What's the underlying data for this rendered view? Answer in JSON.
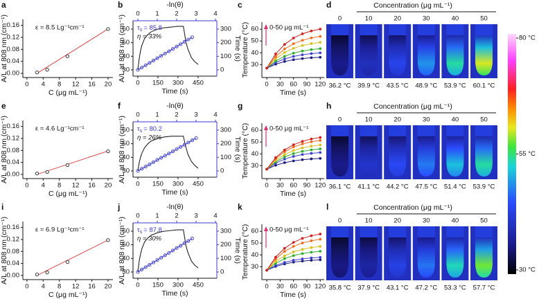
{
  "chart_data": [
    {
      "panel": "a",
      "type": "calibration",
      "annotation": "ε = 8.5 Lg⁻¹cm⁻¹",
      "x_label": "C (μg mL⁻¹)",
      "y_label": "A/L at 808 nm (cm⁻¹)",
      "x": [
        2.5,
        5,
        10,
        20
      ],
      "values": [
        0.003,
        0.012,
        0.057,
        0.148
      ],
      "fit_x": [
        2.5,
        20
      ],
      "fit_values": [
        0.0,
        0.148
      ],
      "color": "#222222",
      "fit_color": "#e04848",
      "xlim": [
        -1,
        21.2
      ],
      "ylim": [
        -0.014,
        0.18
      ],
      "xticks": [
        0,
        4,
        8,
        12,
        16,
        20
      ],
      "yticks": [
        {
          "value": 0,
          "label": "0.00"
        },
        {
          "value": 0.04,
          "label": "0.04"
        },
        {
          "value": 0.08,
          "label": "0.08"
        },
        {
          "value": 0.12,
          "label": "0.12"
        },
        {
          "value": 0.16,
          "label": "0.16"
        }
      ]
    },
    {
      "panel": "b",
      "type": "dual",
      "x_label": "Time (s)",
      "y_label": "A/L at 808 nm (cm⁻¹)",
      "x2_label": "-ln(θ)",
      "y2_label": "Time (s)",
      "tau": "τ",
      "tau_sub": "s",
      "tau_value": "= 85.8",
      "eta": "η = 33%",
      "xlim": [
        -36,
        590
      ],
      "xticks": [
        0,
        150,
        300,
        450
      ],
      "x2lim": [
        -0.25,
        4.07
      ],
      "x2ticks": [
        0,
        1,
        2,
        3,
        4
      ],
      "ylim": [
        25.4,
        66.1
      ],
      "yticks": [
        30,
        40,
        50,
        60
      ],
      "y2lim": [
        -46,
        361
      ],
      "y2ticks": [
        0,
        100,
        200,
        300
      ],
      "axis2_color": "#3a3ad0",
      "series": [
        {
          "color": "#222222",
          "x": [
            0,
            10,
            20,
            30,
            50,
            75,
            100,
            150,
            200,
            250,
            300,
            340,
            350,
            360,
            375,
            400,
            425,
            450
          ],
          "values": [
            30,
            38,
            44,
            48,
            53,
            56,
            58,
            60,
            61,
            61.5,
            62,
            62,
            56,
            50,
            45,
            39,
            36,
            34
          ]
        },
        {
          "color": "#3a3ad0",
          "axis": "y2",
          "x": [
            0,
            0.2,
            0.4,
            0.6,
            0.8,
            1.0,
            1.2,
            1.4,
            1.6,
            1.8,
            2.0,
            2.2,
            2.4,
            2.6,
            2.8
          ],
          "values": [
            0,
            17,
            34,
            51,
            69,
            86,
            103,
            120,
            137,
            154,
            172,
            189,
            206,
            223,
            240
          ]
        }
      ]
    },
    {
      "panel": "c",
      "type": "line",
      "x_label": "Time (s)",
      "y_label": "Temperature (°C)",
      "annotation": "0-50 μg mL⁻¹",
      "arrow_color": "#e0306a",
      "x": [
        0,
        20,
        40,
        60,
        80,
        100,
        120
      ],
      "xlim": [
        -11,
        129
      ],
      "xticks": [
        0,
        30,
        60,
        90,
        120
      ],
      "ylim": [
        19,
        66
      ],
      "yticks": [
        30,
        40,
        50,
        60
      ],
      "series": [
        {
          "color": "#1c1c80",
          "values": [
            27,
            30.3,
            32.6,
            34.1,
            35.1,
            35.8,
            36.2
          ]
        },
        {
          "color": "#4040d0",
          "values": [
            27,
            31.7,
            34.8,
            36.9,
            38.3,
            39.3,
            39.9
          ]
        },
        {
          "color": "#30b030",
          "values": [
            27,
            33.0,
            37.0,
            39.7,
            41.5,
            42.7,
            43.5
          ]
        },
        {
          "color": "#d8c020",
          "values": [
            27,
            34.9,
            40.3,
            43.8,
            46.2,
            47.8,
            48.9
          ]
        },
        {
          "color": "#f07020",
          "values": [
            27,
            36.8,
            43.3,
            47.7,
            50.6,
            52.6,
            53.9
          ]
        },
        {
          "color": "#d02020",
          "values": [
            27,
            39.0,
            47.1,
            52.5,
            56.1,
            58.5,
            60.1
          ]
        }
      ]
    },
    {
      "panel": "d",
      "type": "thermal",
      "title": "Concentration (μg mL⁻¹)",
      "categories": [
        "0",
        "10",
        "20",
        "30",
        "40",
        "50"
      ],
      "values": [
        36.2,
        39.9,
        43.5,
        48.9,
        53.9,
        60.1
      ],
      "value_labels": [
        "36.2 °C",
        "39.9 °C",
        "43.5 °C",
        "48.9 °C",
        "53.9 °C",
        "60.1 °C"
      ]
    },
    {
      "panel": "e",
      "type": "calibration",
      "annotation": "ε = 4.6 Lg⁻¹cm⁻¹",
      "x_label": "C (μg mL⁻¹)",
      "y_label": "A/L at 808 nm (cm⁻¹)",
      "x": [
        2.5,
        5,
        10,
        20
      ],
      "values": [
        0.003,
        0.008,
        0.031,
        0.077
      ],
      "fit_x": [
        2.5,
        20
      ],
      "fit_values": [
        0.0,
        0.078
      ],
      "color": "#222222",
      "fit_color": "#e04848",
      "xlim": [
        -1,
        21.2
      ],
      "ylim": [
        -0.014,
        0.18
      ],
      "xticks": [
        0,
        4,
        8,
        12,
        16,
        20
      ],
      "yticks": [
        {
          "value": 0,
          "label": "0.00"
        },
        {
          "value": 0.04,
          "label": "0.04"
        },
        {
          "value": 0.08,
          "label": "0.08"
        },
        {
          "value": 0.12,
          "label": "0.12"
        },
        {
          "value": 0.16,
          "label": "0.16"
        }
      ]
    },
    {
      "panel": "f",
      "type": "dual",
      "x_label": "Time (s)",
      "y_label": "A/L at 808 nm (cm⁻¹)",
      "x2_label": "-ln(θ)",
      "y2_label": "Time (s)",
      "tau": "τ",
      "tau_sub": "s",
      "tau_value": "= 80.2",
      "eta": "η = 26%",
      "xlim": [
        -36,
        590
      ],
      "xticks": [
        0,
        150,
        300,
        450
      ],
      "x2lim": [
        -0.25,
        4.07
      ],
      "x2ticks": [
        0,
        1,
        2,
        3,
        4
      ],
      "ylim": [
        25.4,
        66.1
      ],
      "yticks": [
        30,
        40,
        50,
        60
      ],
      "y2lim": [
        -46,
        361
      ],
      "y2ticks": [
        0,
        100,
        200,
        300
      ],
      "axis2_color": "#3a3ad0",
      "series": [
        {
          "color": "#222222",
          "x": [
            0,
            10,
            20,
            30,
            50,
            75,
            100,
            150,
            200,
            250,
            300,
            340,
            350,
            360,
            375,
            400,
            425,
            450
          ],
          "values": [
            30,
            36,
            40,
            43,
            47,
            50,
            52,
            54,
            55,
            55.5,
            55.5,
            55.5,
            51,
            47,
            42,
            37,
            34,
            32
          ]
        },
        {
          "color": "#3a3ad0",
          "axis": "y2",
          "x": [
            0,
            0.2,
            0.4,
            0.6,
            0.8,
            1.0,
            1.2,
            1.4,
            1.6,
            1.8,
            2.0,
            2.2,
            2.4,
            2.6,
            2.8,
            3.0
          ],
          "values": [
            0,
            16,
            32,
            48,
            64,
            80,
            96,
            112,
            128,
            144,
            160,
            176,
            192,
            209,
            225,
            241
          ]
        }
      ]
    },
    {
      "panel": "g",
      "type": "line",
      "x_label": "Time (s)",
      "y_label": "Temperature (°C)",
      "annotation": "0-50 μg mL⁻¹",
      "arrow_color": "#e0306a",
      "x": [
        0,
        20,
        40,
        60,
        80,
        100,
        120
      ],
      "xlim": [
        -11,
        129
      ],
      "xticks": [
        0,
        30,
        60,
        90,
        120
      ],
      "ylim": [
        19,
        66
      ],
      "yticks": [
        30,
        40,
        50,
        60
      ],
      "series": [
        {
          "color": "#1c1c80",
          "values": [
            27,
            30.3,
            32.5,
            34.0,
            35.0,
            35.7,
            36.1
          ]
        },
        {
          "color": "#4040d0",
          "values": [
            27,
            32.1,
            35.5,
            37.8,
            39.4,
            40.4,
            41.1
          ]
        },
        {
          "color": "#30b030",
          "values": [
            27,
            33.2,
            37.4,
            40.2,
            42.1,
            43.4,
            44.2
          ]
        },
        {
          "color": "#d8c020",
          "values": [
            27,
            34.4,
            39.4,
            42.8,
            45.0,
            46.5,
            47.5
          ]
        },
        {
          "color": "#f07020",
          "values": [
            27,
            35.9,
            41.8,
            45.8,
            48.4,
            50.2,
            51.4
          ]
        },
        {
          "color": "#d02020",
          "values": [
            27,
            36.8,
            43.3,
            47.7,
            50.6,
            52.6,
            53.9
          ]
        }
      ]
    },
    {
      "panel": "h",
      "type": "thermal",
      "title": "Concentration (μg mL⁻¹)",
      "categories": [
        "0",
        "10",
        "20",
        "30",
        "40",
        "50"
      ],
      "values": [
        36.1,
        41.1,
        44.2,
        47.5,
        51.4,
        53.9
      ],
      "value_labels": [
        "36.1 °C",
        "41.1 °C",
        "44.2 °C",
        "47.5 °C",
        "51.4 °C",
        "53.9 °C"
      ]
    },
    {
      "panel": "i",
      "type": "calibration",
      "annotation": "ε = 6.9 Lg⁻¹cm⁻¹",
      "x_label": "C (μg mL⁻¹)",
      "y_label": "A/L at 808 nm (cm⁻¹)",
      "x": [
        2.5,
        5,
        10,
        20
      ],
      "values": [
        0.003,
        0.01,
        0.045,
        0.118
      ],
      "fit_x": [
        2.5,
        20
      ],
      "fit_values": [
        0.0,
        0.118
      ],
      "color": "#222222",
      "fit_color": "#e04848",
      "xlim": [
        -1,
        21.2
      ],
      "ylim": [
        -0.014,
        0.18
      ],
      "xticks": [
        0,
        4,
        8,
        12,
        16,
        20
      ],
      "yticks": [
        {
          "value": 0,
          "label": "0.00"
        },
        {
          "value": 0.04,
          "label": "0.04"
        },
        {
          "value": 0.08,
          "label": "0.08"
        },
        {
          "value": 0.12,
          "label": "0.12"
        },
        {
          "value": 0.16,
          "label": "0.16"
        }
      ]
    },
    {
      "panel": "j",
      "type": "dual",
      "x_label": "Time (s)",
      "y_label": "A/L at 808 nm (cm⁻¹)",
      "x2_label": "-ln(θ)",
      "y2_label": "Time (s)",
      "tau": "τ",
      "tau_sub": "s",
      "tau_value": "= 87.8",
      "eta": "η = 30%",
      "xlim": [
        -36,
        590
      ],
      "xticks": [
        0,
        150,
        300,
        450
      ],
      "x2lim": [
        -0.25,
        4.07
      ],
      "x2ticks": [
        0,
        1,
        2,
        3,
        4
      ],
      "ylim": [
        25.4,
        66.1
      ],
      "yticks": [
        30,
        40,
        50,
        60
      ],
      "y2lim": [
        -46,
        361
      ],
      "y2ticks": [
        0,
        100,
        200,
        300
      ],
      "axis2_color": "#3a3ad0",
      "series": [
        {
          "color": "#222222",
          "x": [
            0,
            10,
            20,
            30,
            50,
            75,
            100,
            150,
            200,
            250,
            300,
            340,
            350,
            360,
            375,
            400,
            425,
            450
          ],
          "values": [
            30,
            38,
            43,
            47,
            52,
            55,
            57,
            59,
            60,
            60.5,
            61,
            61,
            55,
            49,
            44,
            38,
            35,
            33
          ]
        },
        {
          "color": "#3a3ad0",
          "axis": "y2",
          "x": [
            0,
            0.2,
            0.4,
            0.6,
            0.8,
            1.0,
            1.2,
            1.4,
            1.6,
            1.8,
            2.0,
            2.2,
            2.4,
            2.6,
            2.8
          ],
          "values": [
            0,
            18,
            35,
            53,
            70,
            88,
            105,
            123,
            140,
            158,
            176,
            193,
            211,
            228,
            246
          ]
        }
      ]
    },
    {
      "panel": "k",
      "type": "line",
      "x_label": "Time (s)",
      "y_label": "Temperature (°C)",
      "annotation": "0-50 μg mL⁻¹",
      "arrow_color": "#e0306a",
      "x": [
        0,
        20,
        40,
        60,
        80,
        100,
        120
      ],
      "xlim": [
        -11,
        129
      ],
      "xticks": [
        0,
        30,
        60,
        90,
        120
      ],
      "ylim": [
        19,
        66
      ],
      "yticks": [
        30,
        40,
        50,
        60
      ],
      "series": [
        {
          "color": "#1c1c80",
          "values": [
            27,
            30.2,
            32.3,
            33.8,
            34.7,
            35.4,
            35.8
          ]
        },
        {
          "color": "#4040d0",
          "values": [
            27,
            31.0,
            33.6,
            35.4,
            36.6,
            37.4,
            37.9
          ]
        },
        {
          "color": "#30b030",
          "values": [
            27,
            32.8,
            36.8,
            39.4,
            41.1,
            42.3,
            43.1
          ]
        },
        {
          "color": "#d8c020",
          "values": [
            27,
            34.3,
            39.2,
            42.5,
            44.7,
            46.2,
            47.2
          ]
        },
        {
          "color": "#f07020",
          "values": [
            27,
            36.5,
            42.9,
            47.2,
            50.1,
            52.0,
            53.3
          ]
        },
        {
          "color": "#d02020",
          "values": [
            27,
            38.1,
            45.6,
            50.6,
            54.0,
            56.2,
            57.7
          ]
        }
      ]
    },
    {
      "panel": "l",
      "type": "thermal",
      "title": "Concentration (μg mL⁻¹)",
      "categories": [
        "0",
        "10",
        "20",
        "30",
        "40",
        "50"
      ],
      "values": [
        35.8,
        37.9,
        43.1,
        47.2,
        53.3,
        57.7
      ],
      "value_labels": [
        "35.8 °C",
        "37.9 °C",
        "43.1 °C",
        "47.2 °C",
        "53.3 °C",
        "57.7 °C"
      ]
    },
    {
      "type": "colorbar",
      "clim": [
        30,
        80
      ],
      "ticks": [
        {
          "value": 80,
          "label": "80 °C"
        },
        {
          "value": 55,
          "label": "55 °C"
        },
        {
          "value": 30,
          "label": "30 °C"
        }
      ]
    }
  ]
}
